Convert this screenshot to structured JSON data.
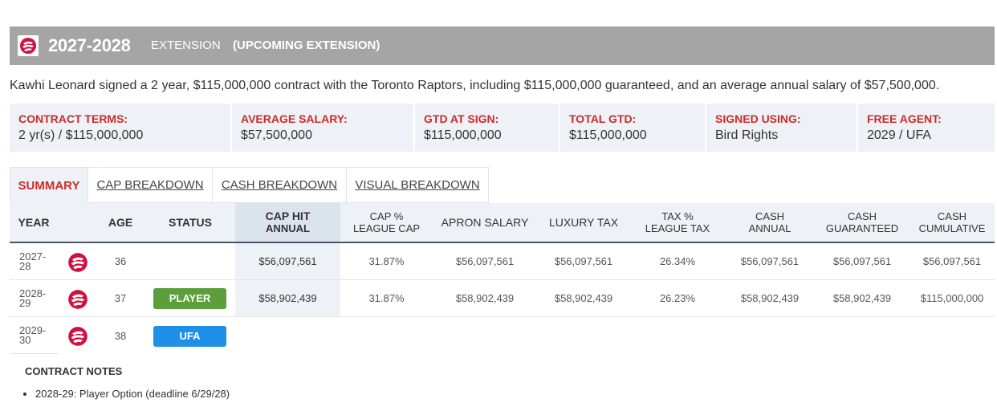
{
  "header": {
    "years": "2027-2028",
    "type": "EXTENSION",
    "note": "(UPCOMING EXTENSION)"
  },
  "summary": "Kawhi Leonard signed a 2 year, $115,000,000 contract with the Toronto Raptors, including $115,000,000 guaranteed, and an average annual salary of $57,500,000.",
  "terms": [
    {
      "label": "CONTRACT TERMS:",
      "value": "2 yr(s) / $115,000,000"
    },
    {
      "label": "AVERAGE SALARY:",
      "value": "$57,500,000"
    },
    {
      "label": "GTD AT SIGN:",
      "value": "$115,000,000"
    },
    {
      "label": "TOTAL GTD:",
      "value": "$115,000,000"
    },
    {
      "label": "SIGNED USING:",
      "value": "Bird Rights"
    },
    {
      "label": "FREE AGENT:",
      "value": "2029 / UFA"
    }
  ],
  "tabs": [
    "SUMMARY",
    "CAP BREAKDOWN",
    "CASH BREAKDOWN",
    "VISUAL BREAKDOWN"
  ],
  "table": {
    "headers": {
      "year": "YEAR",
      "age": "AGE",
      "status": "STATUS",
      "cap_hit_1": "CAP HIT",
      "cap_hit_2": "ANNUAL",
      "cap_pct_1": "CAP %",
      "cap_pct_2": "LEAGUE CAP",
      "apron": "APRON SALARY",
      "luxury": "LUXURY TAX",
      "tax_pct_1": "TAX %",
      "tax_pct_2": "LEAGUE TAX",
      "cash_1": "CASH",
      "cash_2": "ANNUAL",
      "cash_gtd_1": "CASH",
      "cash_gtd_2": "GUARANTEED",
      "cash_cum_1": "CASH",
      "cash_cum_2": "CUMULATIVE"
    },
    "rows": [
      {
        "year_a": "2027-",
        "year_b": "28",
        "age": "36",
        "status": "",
        "cap_hit": "$56,097,561",
        "cap_pct": "31.87%",
        "apron": "$56,097,561",
        "luxury": "$56,097,561",
        "tax_pct": "26.34%",
        "cash": "$56,097,561",
        "cash_gtd": "$56,097,561",
        "cash_cum": "$56,097,561"
      },
      {
        "year_a": "2028-",
        "year_b": "29",
        "age": "37",
        "status": "PLAYER",
        "cap_hit": "$58,902,439",
        "cap_pct": "31.87%",
        "apron": "$58,902,439",
        "luxury": "$58,902,439",
        "tax_pct": "26.23%",
        "cash": "$58,902,439",
        "cash_gtd": "$58,902,439",
        "cash_cum": "$115,000,000"
      },
      {
        "year_a": "2029-",
        "year_b": "30",
        "age": "38",
        "status": "UFA"
      }
    ]
  },
  "notes": {
    "title": "CONTRACT NOTES",
    "items": [
      "2028-29: Player Option (deadline 6/29/28)"
    ]
  },
  "colors": {
    "accent_red": "#cd2a2a",
    "player_green": "#5c9d3c",
    "ufa_blue": "#1e90e8",
    "header_gray": "#a5a5a5"
  },
  "icons": [
    "raptors-logo-icon"
  ]
}
